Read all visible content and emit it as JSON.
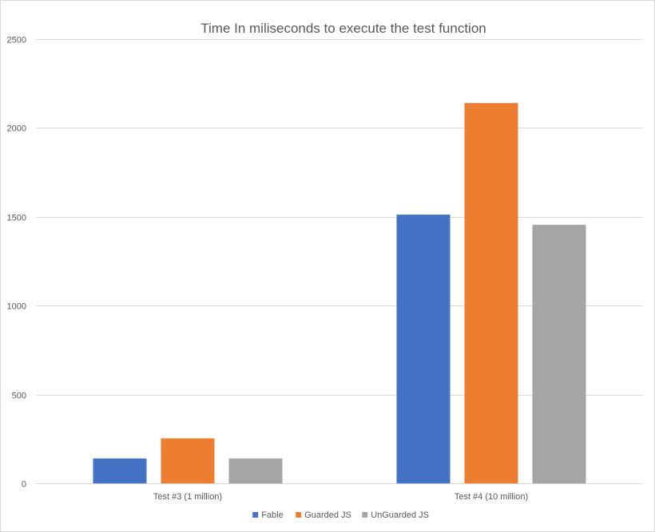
{
  "chart_data": {
    "type": "bar",
    "title": "Time In miliseconds to execute the test function",
    "xlabel": "",
    "ylabel": "",
    "categories": [
      "Test #3 (1 million)",
      "Test #4 (10 million)"
    ],
    "series": [
      {
        "name": "Fable",
        "values": [
          140,
          1512
        ],
        "color": "#4472c4"
      },
      {
        "name": "Guarded JS",
        "values": [
          253,
          2140
        ],
        "color": "#ed7d31"
      },
      {
        "name": "UnGuarded JS",
        "values": [
          140,
          1455
        ],
        "color": "#a5a5a5"
      }
    ],
    "ylim": [
      0,
      2500
    ],
    "yticks": [
      0,
      500,
      1000,
      1500,
      2000,
      2500
    ],
    "grid": true,
    "legend_position": "bottom"
  }
}
